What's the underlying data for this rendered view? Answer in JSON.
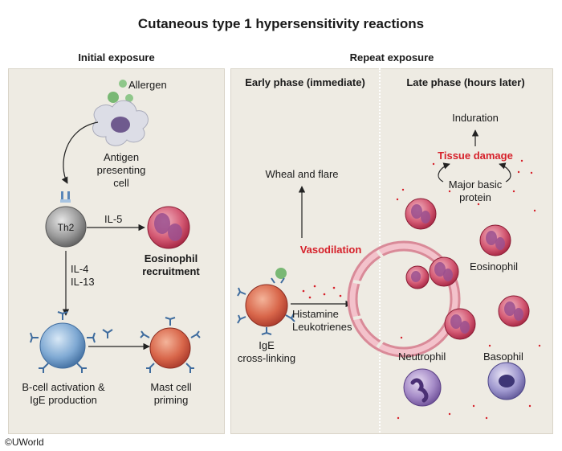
{
  "title": "Cutaneous type 1 hypersensitivity reactions",
  "headers": {
    "initial": "Initial exposure",
    "repeat": "Repeat exposure",
    "early": "Early phase (immediate)",
    "late": "Late phase (hours later)"
  },
  "initial": {
    "allergen": "Allergen",
    "apc_1": "Antigen",
    "apc_2": "presenting",
    "apc_3": "cell",
    "th2": "Th2",
    "il5": "IL-5",
    "eos_1": "Eosinophil",
    "eos_2": "recruitment",
    "il4": "IL-4",
    "il13": "IL-13",
    "bcell_1": "B-cell activation &",
    "bcell_2": "IgE production",
    "mast_1": "Mast cell",
    "mast_2": "priming"
  },
  "early": {
    "wheal": "Wheal and flare",
    "vasodilation": "Vasodilation",
    "histamine": "Histamine",
    "leukotrienes": "Leukotrienes",
    "ige_1": "IgE",
    "ige_2": "cross-linking"
  },
  "late": {
    "induration": "Induration",
    "tissue_damage": "Tissue damage",
    "mbp_1": "Major basic",
    "mbp_2": "protein",
    "eosinophil": "Eosinophil",
    "neutrophil": "Neutrophil",
    "basophil": "Basophil"
  },
  "copyright": "©UWorld",
  "colors": {
    "panel_bg": "#eeebe3",
    "eosinophil": "#c2324a",
    "mast_cell": "#d0583c",
    "b_cell": "#5f8fbf",
    "neutrophil": "#8a6bb0",
    "emphasis_red": "#d6202a"
  }
}
